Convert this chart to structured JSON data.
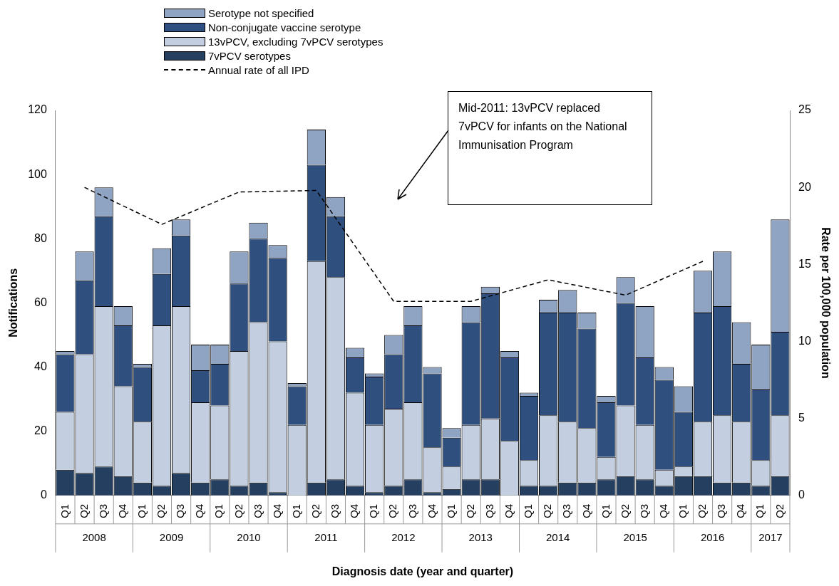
{
  "chart_data": {
    "type": "bar",
    "stacked": true,
    "xlabel": "Diagnosis date (year and quarter)",
    "ylabel": "Notifications",
    "y2label": "Rate per 100,000 population",
    "categories": [
      "Q1",
      "Q2",
      "Q3",
      "Q4",
      "Q1",
      "Q2",
      "Q3",
      "Q4",
      "Q1",
      "Q2",
      "Q3",
      "Q4",
      "Q1",
      "Q2",
      "Q3",
      "Q4",
      "Q1",
      "Q2",
      "Q3",
      "Q4",
      "Q1",
      "Q2",
      "Q3",
      "Q4",
      "Q1",
      "Q2",
      "Q3",
      "Q4",
      "Q1",
      "Q2",
      "Q3",
      "Q4",
      "Q1",
      "Q2",
      "Q3",
      "Q4",
      "Q1",
      "Q2"
    ],
    "series": [
      {
        "name": "7vPCV serotypes",
        "color": "#243f60",
        "values": [
          8,
          7,
          9,
          6,
          4,
          3,
          7,
          4,
          5,
          3,
          4,
          1,
          0,
          4,
          5,
          3,
          1,
          3,
          5,
          1,
          2,
          5,
          5,
          0,
          3,
          3,
          4,
          4,
          5,
          6,
          5,
          3,
          6,
          6,
          4,
          4,
          3,
          6
        ]
      },
      {
        "name": "13vPCV, excluding 7vPCV serotypes",
        "color": "#c3cfe0",
        "values": [
          18,
          37,
          50,
          28,
          19,
          50,
          52,
          25,
          23,
          42,
          50,
          47,
          22,
          69,
          63,
          29,
          21,
          24,
          24,
          14,
          7,
          17,
          19,
          17,
          8,
          22,
          19,
          17,
          7,
          22,
          17,
          5,
          3,
          17,
          21,
          19,
          8,
          19
        ]
      },
      {
        "name": "Non-conjugate vaccine serotype",
        "color": "#2f4f7f",
        "values": [
          18,
          23,
          28,
          19,
          17,
          16,
          22,
          10,
          13,
          21,
          26,
          26,
          12,
          30,
          19,
          11,
          15,
          17,
          24,
          23,
          9,
          32,
          39,
          26,
          20,
          32,
          34,
          31,
          17,
          32,
          21,
          28,
          17,
          34,
          34,
          18,
          22,
          26
        ]
      },
      {
        "name": "Serotype not specified",
        "color": "#8fa3c2",
        "values": [
          1,
          9,
          9,
          6,
          1,
          8,
          5,
          8,
          6,
          10,
          5,
          4,
          1,
          11,
          6,
          3,
          1,
          6,
          6,
          2,
          3,
          5,
          2,
          2,
          1,
          4,
          7,
          5,
          2,
          8,
          16,
          4,
          8,
          13,
          17,
          13,
          14,
          35
        ]
      },
      {
        "name": "Annual rate of all IPD",
        "type": "line",
        "axis": "y2",
        "color": "#000000",
        "line_style": "dashed",
        "marker": "none",
        "values": [
          null,
          20.0,
          null,
          null,
          null,
          17.6,
          null,
          null,
          null,
          19.7,
          null,
          null,
          null,
          19.8,
          null,
          null,
          null,
          12.6,
          null,
          null,
          null,
          12.6,
          null,
          null,
          null,
          14.0,
          null,
          null,
          null,
          13.0,
          null,
          null,
          null,
          15.2,
          null,
          null,
          null,
          null
        ]
      }
    ],
    "ylim": [
      0,
      120
    ],
    "yticks": [
      0,
      20,
      40,
      60,
      80,
      100,
      120
    ],
    "y2lim": [
      0,
      25
    ],
    "y2ticks": [
      0,
      5,
      10,
      15,
      20,
      25
    ],
    "grid": false,
    "legend": "top left",
    "annotations": [
      "Mid-2011: 13vPCV replaced 7vPCV for infants on the National Immunisation Program",
      "2008",
      "2009",
      "2010",
      "2011",
      "2012",
      "2013",
      "2014",
      "2015",
      "2016",
      "2017"
    ]
  }
}
